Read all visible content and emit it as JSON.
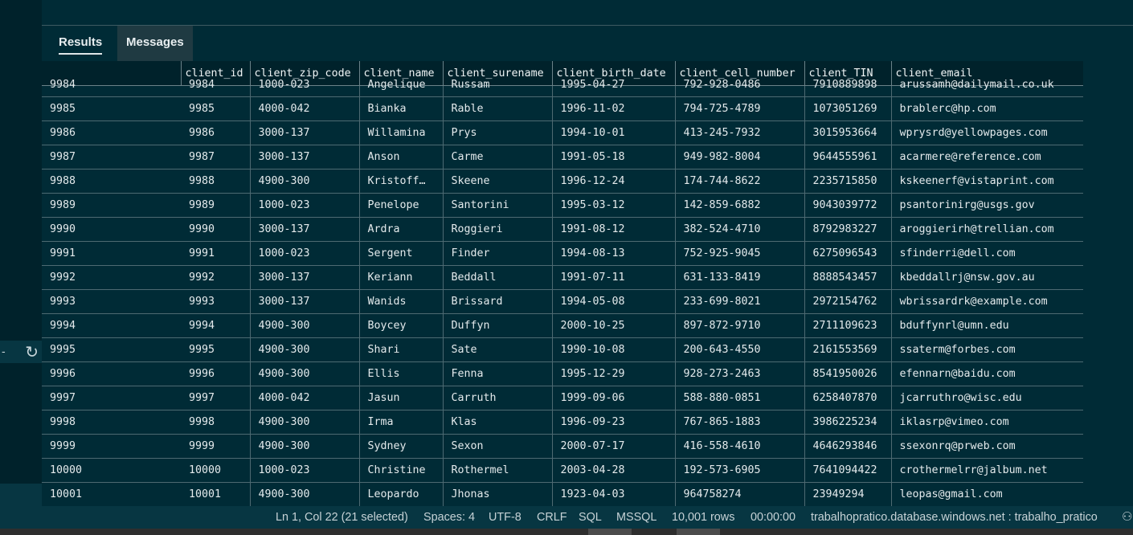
{
  "tabs": {
    "results": "Results",
    "messages": "Messages"
  },
  "icons": {
    "refresh": "↻",
    "collapse": "-",
    "account": "⚇"
  },
  "columns": [
    "",
    "client_id",
    "client_zip_code",
    "client_name",
    "client_surename",
    "client_birth_date",
    "client_cell_number",
    "client_TIN",
    "client_email"
  ],
  "partial_row": [
    "9984",
    "9984",
    "1000-023",
    "Angelique",
    "Russam",
    "1995-04-27",
    "792-928-0486",
    "7910889898",
    "arussamh@dailymail.co.uk"
  ],
  "rows": [
    [
      "9985",
      "9985",
      "4000-042",
      "Bianka",
      "Rable",
      "1996-11-02",
      "794-725-4789",
      "1073051269",
      "brablerc@hp.com"
    ],
    [
      "9986",
      "9986",
      "3000-137",
      "Willamina",
      "Prys",
      "1994-10-01",
      "413-245-7932",
      "3015953664",
      "wprysrd@yellowpages.com"
    ],
    [
      "9987",
      "9987",
      "3000-137",
      "Anson",
      "Carme",
      "1991-05-18",
      "949-982-8004",
      "9644555961",
      "acarmere@reference.com"
    ],
    [
      "9988",
      "9988",
      "4900-300",
      "Kristoff…",
      "Skeene",
      "1996-12-24",
      "174-744-8622",
      "2235715850",
      "kskeenerf@vistaprint.com"
    ],
    [
      "9989",
      "9989",
      "1000-023",
      "Penelope",
      "Santorini",
      "1995-03-12",
      "142-859-6882",
      "9043039772",
      "psantorinirg@usgs.gov"
    ],
    [
      "9990",
      "9990",
      "3000-137",
      "Ardra",
      "Roggieri",
      "1991-08-12",
      "382-524-4710",
      "8792983227",
      "aroggierirh@trellian.com"
    ],
    [
      "9991",
      "9991",
      "1000-023",
      "Sergent",
      "Finder",
      "1994-08-13",
      "752-925-9045",
      "6275096543",
      "sfinderri@dell.com"
    ],
    [
      "9992",
      "9992",
      "3000-137",
      "Keriann",
      "Beddall",
      "1991-07-11",
      "631-133-8419",
      "8888543457",
      "kbeddallrj@nsw.gov.au"
    ],
    [
      "9993",
      "9993",
      "3000-137",
      "Wanids",
      "Brissard",
      "1994-05-08",
      "233-699-8021",
      "2972154762",
      "wbrissardrk@example.com"
    ],
    [
      "9994",
      "9994",
      "4900-300",
      "Boycey",
      "Duffyn",
      "2000-10-25",
      "897-872-9710",
      "2711109623",
      "bduffynrl@umn.edu"
    ],
    [
      "9995",
      "9995",
      "4900-300",
      "Shari",
      "Sate",
      "1990-10-08",
      "200-643-4550",
      "2161553569",
      "ssaterm@forbes.com"
    ],
    [
      "9996",
      "9996",
      "4900-300",
      "Ellis",
      "Fenna",
      "1995-12-29",
      "928-273-2463",
      "8541950026",
      "efennarn@baidu.com"
    ],
    [
      "9997",
      "9997",
      "4000-042",
      "Jasun",
      "Carruth",
      "1999-09-06",
      "588-880-0851",
      "6258407870",
      "jcarruthro@wisc.edu"
    ],
    [
      "9998",
      "9998",
      "4900-300",
      "Irma",
      "Klas",
      "1996-09-23",
      "767-865-1883",
      "3986225234",
      "iklasrp@vimeo.com"
    ],
    [
      "9999",
      "9999",
      "4900-300",
      "Sydney",
      "Sexon",
      "2000-07-17",
      "416-558-4610",
      "4646293846",
      "ssexonrq@prweb.com"
    ],
    [
      "10000",
      "10000",
      "1000-023",
      "Christine",
      "Rothermel",
      "2003-04-28",
      "192-573-6905",
      "7641094422",
      "crothermelrr@jalbum.net"
    ],
    [
      "10001",
      "10001",
      "4900-300",
      "Leopardo",
      "Jhonas",
      "1923-04-03",
      "964758274",
      "23949294",
      "leopas@gmail.com"
    ]
  ],
  "status": {
    "position": "Ln 1, Col 22 (21 selected)",
    "spaces": "Spaces: 4",
    "encoding": "UTF-8",
    "eol": "CRLF",
    "language": "SQL",
    "provider": "MSSQL",
    "rows": "10,001 rows",
    "time": "00:00:00",
    "connection": "trabalhopratico.database.windows.net : trabalho_pratico"
  }
}
